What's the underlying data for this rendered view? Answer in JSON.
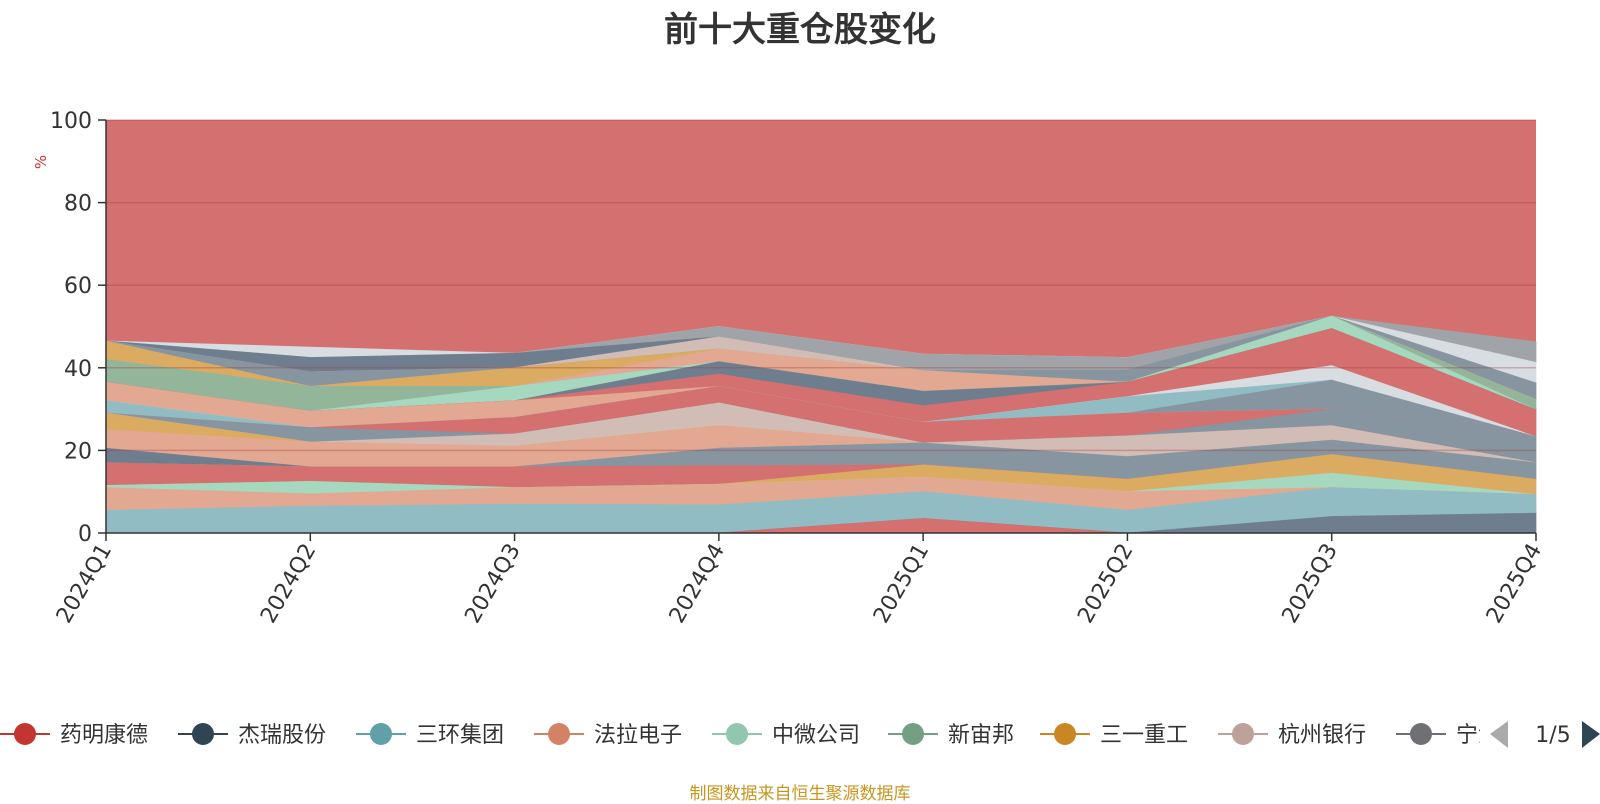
{
  "chart_data": {
    "type": "area",
    "title": "前十大重仓股变化",
    "ylabel": "%",
    "ylim": [
      0,
      100
    ],
    "yticks": [
      0,
      20,
      40,
      60,
      80,
      100
    ],
    "stacked": true,
    "grid": true,
    "categories": [
      "2024Q1",
      "2024Q2",
      "2024Q3",
      "2024Q4",
      "2025Q1",
      "2025Q2",
      "2025Q3",
      "2025Q4"
    ],
    "series": [
      {
        "name": "",
        "color": "#d4706f",
        "values": [
          0,
          0,
          0,
          0,
          3.5,
          0,
          0,
          0
        ]
      },
      {
        "name": "",
        "color": "#6f7e8e",
        "values": [
          0,
          0,
          0,
          0,
          0,
          0,
          4,
          4.8
        ]
      },
      {
        "name": "",
        "color": "#91bcc3",
        "values": [
          5.5,
          6.5,
          7,
          6.8,
          6.5,
          5.5,
          7,
          4.5
        ]
      },
      {
        "name": "",
        "color": "#e3a892",
        "values": [
          5.5,
          3,
          4,
          5,
          3.5,
          4.5,
          0,
          0
        ]
      },
      {
        "name": "",
        "color": "#a6d8c0",
        "values": [
          0.5,
          3,
          0,
          0,
          0,
          0,
          3.5,
          0
        ]
      },
      {
        "name": "",
        "color": "#dbab62",
        "values": [
          0,
          0,
          0,
          0,
          3,
          3,
          4.5,
          3.7
        ]
      },
      {
        "name": "",
        "color": "#d4706f",
        "values": [
          5.5,
          3.5,
          5,
          4.5,
          0,
          0,
          0,
          0
        ]
      },
      {
        "name": "",
        "color": "#8695a0",
        "values": [
          0,
          0,
          0,
          4.2,
          5.3,
          5.5,
          3.5,
          4
        ]
      },
      {
        "name": "",
        "color": "#d2bdb6",
        "values": [
          0,
          0,
          0,
          0,
          0,
          5,
          3.5,
          0
        ]
      },
      {
        "name": "",
        "color": "#6f7e8e",
        "values": [
          3.5,
          0,
          0,
          0,
          0,
          0,
          0,
          0
        ]
      },
      {
        "name": "",
        "color": "#e3a892",
        "values": [
          4.5,
          6,
          5,
          5.5,
          0,
          0,
          0,
          0
        ]
      },
      {
        "name": "",
        "color": "#dbab62",
        "values": [
          4,
          0,
          0,
          0,
          0,
          0,
          0,
          0
        ]
      },
      {
        "name": "",
        "color": "#d2bdb6",
        "values": [
          0,
          0,
          3,
          5.5,
          0,
          0,
          0,
          0
        ]
      },
      {
        "name": "",
        "color": "#8695a0",
        "values": [
          0,
          3.5,
          0,
          0,
          0,
          0,
          4,
          6.3
        ]
      },
      {
        "name": "",
        "color": "#d4706f",
        "values": [
          0,
          0,
          4,
          4,
          5,
          5.5,
          0,
          0
        ]
      },
      {
        "name": "",
        "color": "#d2bdb6",
        "values": [
          0,
          0,
          0,
          0,
          0,
          0,
          0,
          0
        ]
      },
      {
        "name": "",
        "color": "#8695a0",
        "values": [
          0,
          0,
          0,
          0,
          0,
          0,
          7,
          0
        ]
      },
      {
        "name": "",
        "color": "#91bcc3",
        "values": [
          3,
          0,
          0,
          0,
          0,
          4,
          0,
          0
        ]
      },
      {
        "name": "",
        "color": "#d8dde2",
        "values": [
          0,
          0,
          0,
          0,
          0,
          0,
          3.5,
          0
        ]
      },
      {
        "name": "",
        "color": "#e3a892",
        "values": [
          4.5,
          4,
          4,
          0,
          0,
          0,
          0,
          0
        ]
      },
      {
        "name": "",
        "color": "#d4706f",
        "values": [
          0,
          0,
          0,
          3,
          4,
          3.5,
          9,
          6.5
        ]
      },
      {
        "name": "",
        "color": "#6f7e8e",
        "values": [
          0,
          0,
          0,
          3,
          3.5,
          0,
          0,
          0
        ]
      },
      {
        "name": "",
        "color": "#a6d8c0",
        "values": [
          0,
          0,
          3.5,
          0,
          0,
          0,
          3,
          0
        ]
      },
      {
        "name": "",
        "color": "#93b59a",
        "values": [
          5.5,
          6,
          0,
          0,
          0,
          0,
          0,
          2.5
        ]
      },
      {
        "name": "",
        "color": "#e3a892",
        "values": [
          0,
          0,
          0,
          3,
          5,
          0,
          0,
          0
        ]
      },
      {
        "name": "",
        "color": "#dbab62",
        "values": [
          4.5,
          0,
          4.5,
          0,
          0,
          0,
          0,
          0
        ]
      },
      {
        "name": "",
        "color": "#8695a0",
        "values": [
          0,
          3.5,
          0,
          0,
          0,
          3,
          0,
          4
        ]
      },
      {
        "name": "",
        "color": "#d2bdb6",
        "values": [
          0,
          0,
          0,
          3,
          0,
          0,
          0,
          0
        ]
      },
      {
        "name": "",
        "color": "#6f7e8e",
        "values": [
          0,
          3.5,
          3.5,
          0,
          0,
          0,
          0,
          0
        ]
      },
      {
        "name": "",
        "color": "#a0a4a8",
        "values": [
          0,
          0,
          0,
          2.5,
          4,
          3,
          0,
          0
        ]
      },
      {
        "name": "",
        "color": "#d8dde2",
        "values": [
          0,
          2.5,
          0,
          0,
          0,
          0,
          0,
          5
        ]
      },
      {
        "name": "",
        "color": "#a0a4a8",
        "values": [
          0,
          0,
          0,
          0,
          0,
          0,
          0,
          5
        ]
      }
    ],
    "legend": {
      "position": "bottom",
      "page": "1/5",
      "items": [
        {
          "name": "药明康德",
          "color": "#c23531"
        },
        {
          "name": "杰瑞股份",
          "color": "#2f4554"
        },
        {
          "name": "三环集团",
          "color": "#61a0a8"
        },
        {
          "name": "法拉电子",
          "color": "#d48265"
        },
        {
          "name": "中微公司",
          "color": "#91c7ae"
        },
        {
          "name": "新宙邦",
          "color": "#749f83"
        },
        {
          "name": "三一重工",
          "color": "#ca8622"
        },
        {
          "name": "杭州银行",
          "color": "#bda29a"
        },
        {
          "name": "宁波",
          "color": "#6e7074"
        }
      ]
    },
    "top_fill_color": "#d4706f",
    "note": "制图数据来自恒生聚源数据库"
  }
}
